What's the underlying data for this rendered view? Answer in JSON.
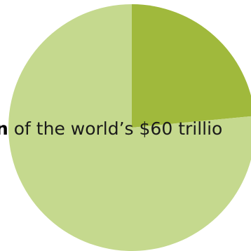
{
  "chart_data": {
    "type": "pie",
    "slices": [
      {
        "label": "",
        "value": 0.235,
        "color": "#a0b93c"
      },
      {
        "label": "",
        "value": 0.765,
        "color": "#c5d98e"
      }
    ],
    "start_angle_deg": 0,
    "direction": "clockwise",
    "title": "",
    "legend": "none"
  },
  "caption": {
    "bold_part": "n",
    "text": " of the world’s $60 trillio"
  }
}
